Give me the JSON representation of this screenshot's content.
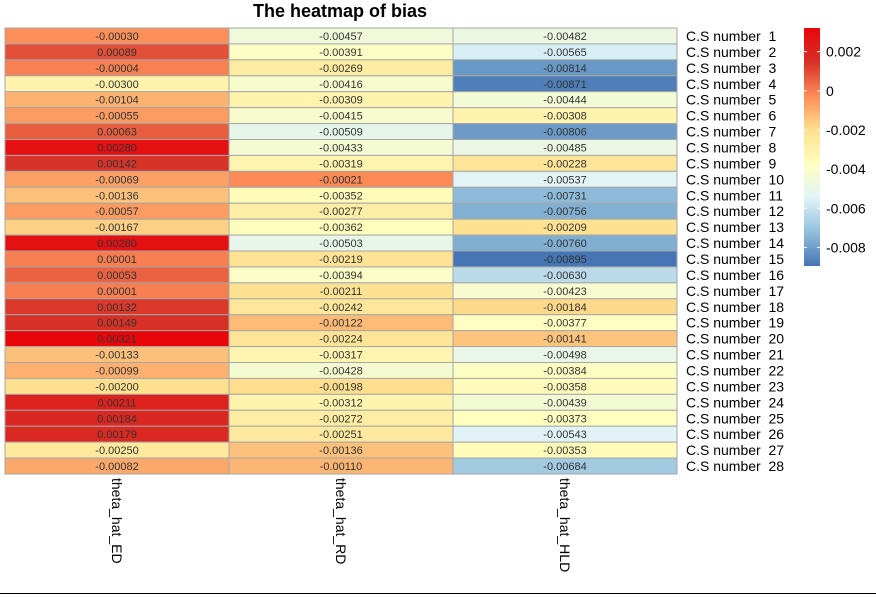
{
  "chart_data": {
    "type": "heatmap",
    "title": "The heatmap of bias",
    "columns": [
      "theta_hat_ED",
      "theta_hat_RD",
      "theta_hat_HLD"
    ],
    "rows": [
      "C.S number  1",
      "C.S number  2",
      "C.S number  3",
      "C.S number  4",
      "C.S number  5",
      "C.S number  6",
      "C.S number  7",
      "C.S number  8",
      "C.S number  9",
      "C.S number  10",
      "C.S number  11",
      "C.S number  12",
      "C.S number  13",
      "C.S number  14",
      "C.S number  15",
      "C.S number  16",
      "C.S number  17",
      "C.S number  18",
      "C.S number  19",
      "C.S number  20",
      "C.S number  21",
      "C.S number  22",
      "C.S number  23",
      "C.S number  24",
      "C.S number  25",
      "C.S number  26",
      "C.S number  27",
      "C.S number  28"
    ],
    "values": [
      [
        -0.0003,
        -0.00457,
        -0.00482
      ],
      [
        0.00089,
        -0.00391,
        -0.00565
      ],
      [
        -4e-05,
        -0.00269,
        -0.00814
      ],
      [
        -0.003,
        -0.00416,
        -0.00871
      ],
      [
        -0.00104,
        -0.00309,
        -0.00444
      ],
      [
        -0.00055,
        -0.00415,
        -0.00308
      ],
      [
        0.00063,
        -0.00509,
        -0.00806
      ],
      [
        0.0028,
        -0.00433,
        -0.00485
      ],
      [
        0.00142,
        -0.00319,
        -0.00228
      ],
      [
        -0.00069,
        -0.00021,
        -0.00537
      ],
      [
        -0.00136,
        -0.00352,
        -0.00731
      ],
      [
        -0.00057,
        -0.00277,
        -0.00756
      ],
      [
        -0.00167,
        -0.00362,
        -0.00209
      ],
      [
        0.0028,
        -0.00503,
        -0.0076
      ],
      [
        1e-05,
        -0.00219,
        -0.00895
      ],
      [
        0.00053,
        -0.00394,
        -0.0063
      ],
      [
        1e-05,
        -0.00211,
        -0.00423
      ],
      [
        0.00132,
        -0.00242,
        -0.00184
      ],
      [
        0.00149,
        -0.00122,
        -0.00377
      ],
      [
        0.00321,
        -0.00224,
        -0.00141
      ],
      [
        -0.00133,
        -0.00317,
        -0.00498
      ],
      [
        -0.00099,
        -0.00428,
        -0.00384
      ],
      [
        -0.002,
        -0.00198,
        -0.00358
      ],
      [
        0.00211,
        -0.00312,
        -0.00439
      ],
      [
        0.00184,
        -0.00272,
        -0.00373
      ],
      [
        0.00179,
        -0.00251,
        -0.00543
      ],
      [
        -0.0025,
        -0.00136,
        -0.00353
      ],
      [
        -0.00082,
        -0.0011,
        -0.00684
      ]
    ],
    "cell_labels": [
      [
        "-0.00030",
        "-0.00457",
        "-0.00482"
      ],
      [
        "0.00089",
        "-0.00391",
        "-0.00565"
      ],
      [
        "-0.00004",
        "-0.00269",
        "-0.00814"
      ],
      [
        "-0.00300",
        "-0.00416",
        "-0.00871"
      ],
      [
        "-0.00104",
        "-0.00309",
        "-0.00444"
      ],
      [
        "-0.00055",
        "-0.00415",
        "-0.00308"
      ],
      [
        "0.00063",
        "-0.00509",
        "-0.00806"
      ],
      [
        "0.00280",
        "-0.00433",
        "-0.00485"
      ],
      [
        "0.00142",
        "-0.00319",
        "-0.00228"
      ],
      [
        "-0.00069",
        "-0.00021",
        "-0.00537"
      ],
      [
        "-0.00136",
        "-0.00352",
        "-0.00731"
      ],
      [
        "-0.00057",
        "-0.00277",
        "-0.00756"
      ],
      [
        "-0.00167",
        "-0.00362",
        "-0.00209"
      ],
      [
        "0.00280",
        "-0.00503",
        "-0.00760"
      ],
      [
        "0.00001",
        "-0.00219",
        "-0.00895"
      ],
      [
        "0.00053",
        "-0.00394",
        "-0.00630"
      ],
      [
        "0.00001",
        "-0.00211",
        "-0.00423"
      ],
      [
        "0.00132",
        "-0.00242",
        "-0.00184"
      ],
      [
        "0.00149",
        "-0.00122",
        "-0.00377"
      ],
      [
        "0.00321",
        "-0.00224",
        "-0.00141"
      ],
      [
        "-0.00133",
        "-0.00317",
        "-0.00498"
      ],
      [
        "-0.00099",
        "-0.00428",
        "-0.00384"
      ],
      [
        "-0.00200",
        "-0.00198",
        "-0.00358"
      ],
      [
        "0.00211",
        "-0.00312",
        "-0.00439"
      ],
      [
        "0.00184",
        "-0.00272",
        "-0.00373"
      ],
      [
        "0.00179",
        "-0.00251",
        "-0.00543"
      ],
      [
        "-0.00250",
        "-0.00136",
        "-0.00353"
      ],
      [
        "-0.00082",
        "-0.00110",
        "-0.00684"
      ]
    ],
    "color_scale": {
      "min": -0.00895,
      "max": 0.00321,
      "stops": [
        "#4575b4",
        "#91bfdb",
        "#e0f3f8",
        "#ffffbf",
        "#fee090",
        "#fc8d59",
        "#d73027",
        "#e8060b"
      ]
    },
    "legend": {
      "position": "right",
      "ticks": [
        {
          "value": 0.002,
          "label": "0.002"
        },
        {
          "value": 0,
          "label": "0"
        },
        {
          "value": -0.002,
          "label": "-0.002"
        },
        {
          "value": -0.004,
          "label": "-0.004"
        },
        {
          "value": -0.006,
          "label": "-0.006"
        },
        {
          "value": -0.008,
          "label": "-0.008"
        }
      ]
    },
    "cell_border_color": "#a6a6a6"
  }
}
